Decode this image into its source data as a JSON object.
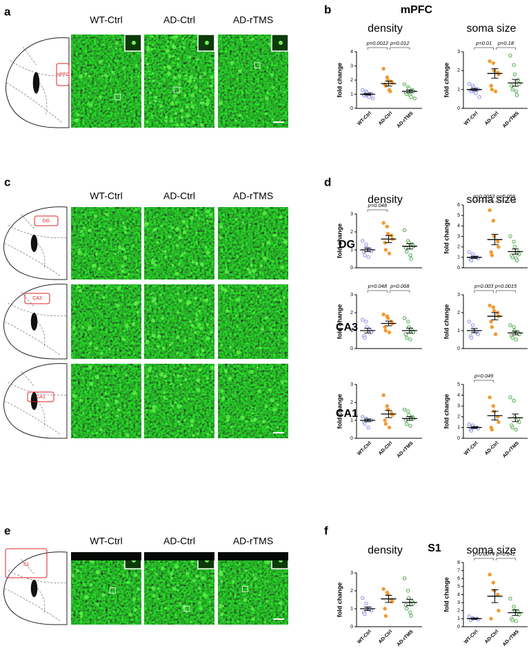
{
  "figure": {
    "panel_letters": [
      "a",
      "b",
      "c",
      "d",
      "e",
      "f"
    ],
    "columns": [
      "WT-Ctrl",
      "AD-Ctrl",
      "AD-rTMS"
    ],
    "regions": [
      "mPFC",
      "DG",
      "CA3",
      "CA1",
      "S1"
    ]
  },
  "chart_data": [
    {
      "type": "strip",
      "title": "density",
      "ylabel": "fold change",
      "categories": [
        "WT-Ctrl",
        "AD-Ctrl",
        "AD-rTMS"
      ],
      "colors": [
        "#8c8ce6",
        "#f39a2e",
        "#4aa84a"
      ],
      "filled": [
        false,
        true,
        false
      ],
      "points": [
        [
          1.3,
          1.2,
          1.1,
          1.05,
          1.0,
          0.95,
          0.9,
          0.85,
          0.8,
          0.7
        ],
        [
          2.8,
          2.2,
          2.0,
          1.9,
          1.8,
          1.7,
          1.6,
          1.3,
          1.2
        ],
        [
          1.7,
          1.5,
          1.4,
          1.3,
          1.2,
          1.1,
          1.0,
          0.9,
          0.8,
          0.7
        ]
      ],
      "mean": [
        1.0,
        1.75,
        1.2
      ],
      "sem": [
        0.06,
        0.17,
        0.1
      ],
      "ylim": [
        0,
        4
      ],
      "yticks": [
        0,
        1,
        2,
        3,
        4
      ],
      "annotations": [
        {
          "label": "p=0.0012",
          "groups": [
            0,
            1
          ]
        },
        {
          "label": "p=0.012",
          "groups": [
            1,
            2
          ]
        }
      ]
    },
    {
      "type": "strip",
      "title": "soma size",
      "ylabel": "fold change",
      "categories": [
        "WT-Ctrl",
        "AD-Ctrl",
        "AD-rTMS"
      ],
      "colors": [
        "#8c8ce6",
        "#f39a2e",
        "#4aa84a"
      ],
      "filled": [
        false,
        true,
        false
      ],
      "points": [
        [
          1.3,
          1.2,
          1.1,
          1.0,
          1.0,
          0.95,
          0.9,
          0.85,
          0.8,
          0.6
        ],
        [
          2.5,
          2.4,
          2.0,
          1.9,
          1.8,
          1.2,
          1.0,
          0.9
        ],
        [
          2.8,
          2.3,
          1.8,
          1.5,
          1.3,
          1.2,
          1.0,
          0.9,
          0.7
        ]
      ],
      "mean": [
        1.0,
        1.85,
        1.35
      ],
      "sem": [
        0.06,
        0.25,
        0.18
      ],
      "ylim": [
        0,
        3
      ],
      "yticks": [
        0,
        1,
        2,
        3
      ],
      "annotations": [
        {
          "label": "p=0.01",
          "groups": [
            0,
            1
          ]
        },
        {
          "label": "p=0.18",
          "groups": [
            1,
            2
          ]
        }
      ]
    },
    {
      "type": "strip",
      "title": "density",
      "ylabel": "fold change",
      "colors": [
        "#8c8ce6",
        "#f39a2e",
        "#4aa84a"
      ],
      "filled": [
        false,
        true,
        false
      ],
      "points": [
        [
          1.5,
          1.3,
          1.1,
          1.0,
          0.95,
          0.9,
          0.7,
          0.6
        ],
        [
          2.5,
          2.3,
          1.9,
          1.8,
          1.6,
          1.4,
          1.0,
          0.8
        ],
        [
          2.1,
          1.5,
          1.4,
          1.3,
          1.2,
          1.1,
          0.9,
          0.7,
          0.5
        ]
      ],
      "mean": [
        1.0,
        1.6,
        1.2
      ],
      "sem": [
        0.1,
        0.2,
        0.15
      ],
      "ylim": [
        0,
        3
      ],
      "yticks": [
        0,
        1,
        2,
        3
      ],
      "annotations": [
        {
          "label": "p=0.048",
          "groups": [
            0,
            1
          ]
        }
      ]
    },
    {
      "type": "strip",
      "title": "soma size",
      "ylabel": "fold change",
      "colors": [
        "#8c8ce6",
        "#f39a2e",
        "#4aa84a"
      ],
      "filled": [
        false,
        true,
        false
      ],
      "points": [
        [
          1.5,
          1.3,
          1.1,
          1.0,
          0.9,
          0.8,
          0.7
        ],
        [
          5.5,
          4.5,
          3.0,
          2.5,
          2.0,
          1.5,
          1.2
        ],
        [
          3.0,
          2.5,
          2.0,
          1.5,
          1.3,
          1.2,
          1.0,
          0.9,
          0.7
        ]
      ],
      "mean": [
        1.0,
        2.7,
        1.55
      ],
      "sem": [
        0.1,
        0.5,
        0.25
      ],
      "ylim": [
        0,
        6
      ],
      "yticks": [
        0,
        1,
        2,
        3,
        4,
        5,
        6
      ],
      "annotations": [
        {
          "label": "p=0.0053",
          "groups": [
            0,
            1
          ]
        },
        {
          "label": "p=0.059",
          "groups": [
            1,
            2
          ]
        }
      ]
    },
    {
      "type": "strip",
      "ylabel": "fold change",
      "colors": [
        "#8c8ce6",
        "#f39a2e",
        "#4aa84a"
      ],
      "filled": [
        false,
        true,
        false
      ],
      "points": [
        [
          1.6,
          1.5,
          1.2,
          1.0,
          0.9,
          0.7,
          0.6
        ],
        [
          1.9,
          1.8,
          1.7,
          1.5,
          1.4,
          1.2,
          1.0,
          0.9
        ],
        [
          1.7,
          1.5,
          1.2,
          1.0,
          0.9,
          0.8,
          0.6,
          0.5
        ]
      ],
      "mean": [
        1.0,
        1.4,
        1.0
      ],
      "sem": [
        0.13,
        0.13,
        0.14
      ],
      "ylim": [
        0,
        3
      ],
      "yticks": [
        0,
        1,
        2,
        3
      ],
      "annotations": [
        {
          "label": "p=0.048",
          "groups": [
            0,
            1
          ]
        },
        {
          "label": "p=0.068",
          "groups": [
            1,
            2
          ]
        }
      ]
    },
    {
      "type": "strip",
      "ylabel": "fold change",
      "colors": [
        "#8c8ce6",
        "#f39a2e",
        "#4aa84a"
      ],
      "filled": [
        false,
        true,
        false
      ],
      "points": [
        [
          1.5,
          1.3,
          1.0,
          0.9,
          0.8,
          0.7,
          0.6
        ],
        [
          2.4,
          2.3,
          2.1,
          2.0,
          1.8,
          1.5,
          1.2,
          0.8
        ],
        [
          1.3,
          1.2,
          1.0,
          0.9,
          0.8,
          0.7,
          0.6,
          0.5
        ]
      ],
      "mean": [
        1.0,
        1.8,
        0.87
      ],
      "sem": [
        0.12,
        0.2,
        0.1
      ],
      "ylim": [
        0,
        3
      ],
      "yticks": [
        0,
        1,
        2,
        3
      ],
      "annotations": [
        {
          "label": "p=0.003",
          "groups": [
            0,
            1
          ]
        },
        {
          "label": "p=0.0015",
          "groups": [
            1,
            2
          ]
        }
      ]
    },
    {
      "type": "strip",
      "ylabel": "fold change",
      "categories": [
        "WT-Ctrl",
        "AD-Ctrl",
        "AD-rTMS"
      ],
      "colors": [
        "#8c8ce6",
        "#f39a2e",
        "#4aa84a"
      ],
      "filled": [
        false,
        true,
        false
      ],
      "points": [
        [
          1.2,
          1.1,
          1.05,
          1.0,
          1.0,
          0.9,
          0.8,
          0.6
        ],
        [
          2.4,
          1.8,
          1.6,
          1.4,
          1.3,
          1.0,
          0.8,
          0.6
        ],
        [
          1.6,
          1.5,
          1.3,
          1.2,
          1.1,
          1.0,
          0.8,
          0.7
        ]
      ],
      "mean": [
        1.0,
        1.35,
        1.1
      ],
      "sem": [
        0.07,
        0.2,
        0.1
      ],
      "ylim": [
        0,
        3
      ],
      "yticks": [
        0,
        1,
        2,
        3
      ]
    },
    {
      "type": "strip",
      "ylabel": "fold change",
      "categories": [
        "WT-Ctrl",
        "AD-Ctrl",
        "AD-rTMS"
      ],
      "colors": [
        "#8c8ce6",
        "#f39a2e",
        "#4aa84a"
      ],
      "filled": [
        false,
        true,
        false
      ],
      "points": [
        [
          1.3,
          1.2,
          1.0,
          1.0,
          0.9,
          0.8,
          0.7
        ],
        [
          3.8,
          3.0,
          2.5,
          2.0,
          1.5,
          1.0,
          0.8
        ],
        [
          3.8,
          3.5,
          2.0,
          1.8,
          1.5,
          1.2,
          1.0,
          0.8
        ]
      ],
      "mean": [
        1.0,
        2.1,
        1.9
      ],
      "sem": [
        0.08,
        0.4,
        0.35
      ],
      "ylim": [
        0,
        5
      ],
      "yticks": [
        0,
        1,
        2,
        3,
        4,
        5
      ],
      "annotations": [
        {
          "label": "p=0.049",
          "groups": [
            0,
            1
          ]
        }
      ]
    },
    {
      "type": "strip",
      "title": "density",
      "ylabel": "fold change",
      "categories": [
        "WT-Ctrl",
        "AD-Ctrl",
        "AD-rTMS"
      ],
      "colors": [
        "#8c8ce6",
        "#f39a2e",
        "#4aa84a"
      ],
      "filled": [
        false,
        true,
        false
      ],
      "points": [
        [
          1.6,
          1.3,
          1.0,
          1.0,
          0.9,
          0.8,
          0.7
        ],
        [
          2.1,
          1.9,
          1.8,
          1.5,
          1.4,
          1.0,
          0.6
        ],
        [
          2.7,
          2.0,
          1.6,
          1.4,
          1.3,
          1.2,
          1.0,
          0.8,
          0.6
        ]
      ],
      "mean": [
        1.0,
        1.55,
        1.35
      ],
      "sem": [
        0.1,
        0.2,
        0.18
      ],
      "ylim": [
        0,
        3
      ],
      "yticks": [
        0,
        1,
        2,
        3
      ]
    },
    {
      "type": "strip",
      "title": "soma size",
      "ylabel": "fold change",
      "categories": [
        "WT-Ctrl",
        "AD-Ctrl",
        "AD-rTMS"
      ],
      "colors": [
        "#8c8ce6",
        "#f39a2e",
        "#4aa84a"
      ],
      "filled": [
        false,
        true,
        false
      ],
      "points": [
        [
          1.3,
          1.1,
          1.0,
          1.0,
          0.9,
          0.8
        ],
        [
          6.5,
          5.5,
          4.5,
          4.0,
          2.0,
          1.0
        ],
        [
          3.5,
          2.5,
          2.0,
          1.8,
          1.5,
          1.0,
          0.8,
          0.7
        ]
      ],
      "mean": [
        1.0,
        3.8,
        1.75
      ],
      "sem": [
        0.08,
        0.8,
        0.35
      ],
      "ylim": [
        0,
        8
      ],
      "yticks": [
        0,
        1,
        2,
        3,
        4,
        5,
        6,
        7,
        8
      ],
      "annotations": [
        {
          "label": "p=0.0074",
          "groups": [
            0,
            1
          ]
        },
        {
          "label": "p=0.041",
          "groups": [
            1,
            2
          ]
        }
      ]
    }
  ]
}
